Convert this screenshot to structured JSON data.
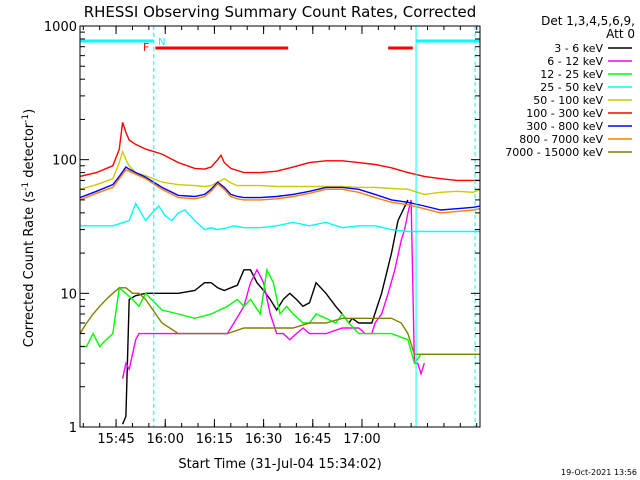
{
  "title": "RHESSI Observing Summary Count Rates, Corrected",
  "xlabel": "Start Time (31-Jul-04 15:34:02)",
  "ylabel_main": "Corrected Count Rate (s",
  "ylabel_sup": "-1",
  "ylabel_mid": " detector",
  "ylabel_end": ")",
  "footer_date": "19-Oct-2021 13:56",
  "flag_f": "F",
  "flag_n": "N",
  "legend": {
    "header_line1": "Det 1,3,4,5,6,9,",
    "header_line2": "Att 0"
  },
  "chart_data": {
    "type": "line",
    "title": "RHESSI Observing Summary Count Rates, Corrected",
    "xlabel": "Start Time (31-Jul-04 15:34:02)",
    "ylabel": "Corrected Count Rate (s^-1 detector^-1)",
    "yscale": "log",
    "ylim": [
      1,
      1000
    ],
    "xlim_minutes": [
      0,
      122
    ],
    "x_ticks": [
      {
        "label": "15:45",
        "min": 11
      },
      {
        "label": "16:00",
        "min": 26
      },
      {
        "label": "16:15",
        "min": 41
      },
      {
        "label": "16:30",
        "min": 56
      },
      {
        "label": "16:45",
        "min": 71
      },
      {
        "label": "17:00",
        "min": 86
      }
    ],
    "y_ticks": [
      {
        "label": "1",
        "value": 1
      },
      {
        "label": "10",
        "value": 10
      },
      {
        "label": "100",
        "value": 100
      },
      {
        "label": "1000",
        "value": 1000
      }
    ],
    "series": [
      {
        "name": "3 - 6 keV",
        "color": "#000000",
        "x": [
          6,
          8,
          10,
          12,
          13,
          14,
          15,
          17,
          20,
          25,
          30,
          35,
          38,
          40,
          42,
          44,
          46,
          48,
          50,
          52,
          54,
          56,
          58,
          60,
          62,
          64,
          66,
          68,
          70,
          72,
          75,
          78,
          80,
          82,
          83,
          85,
          87,
          89,
          92,
          95,
          97,
          100,
          105,
          110,
          115,
          118,
          120,
          122
        ],
        "y": [
          null,
          null,
          null,
          null,
          1.05,
          1.2,
          9.0,
          9.6,
          10,
          10,
          10,
          10.5,
          12,
          12,
          11,
          10.5,
          11,
          11.5,
          15,
          15,
          12,
          10.5,
          9,
          7.5,
          9,
          10,
          9,
          8,
          8.5,
          12,
          10,
          8,
          7,
          6,
          6.5,
          6,
          6,
          6,
          10,
          20,
          35,
          50,
          null,
          null,
          null,
          null,
          null,
          null
        ]
      },
      {
        "name": "6 - 12 keV",
        "color": "#ff00ff",
        "x": [
          13,
          14,
          15,
          16,
          17,
          18,
          20,
          25,
          30,
          35,
          40,
          45,
          50,
          52,
          54,
          56,
          58,
          60,
          62,
          64,
          66,
          68,
          70,
          75,
          80,
          85,
          87,
          89,
          90,
          92,
          94,
          96,
          98,
          99,
          100,
          101,
          102,
          103,
          104,
          105
        ],
        "y": [
          2.3,
          3.0,
          2.7,
          3.5,
          4.5,
          5,
          5,
          5,
          5,
          5,
          5,
          5,
          8,
          12,
          15,
          12,
          7,
          5,
          5,
          4.5,
          5,
          5.5,
          5,
          5,
          5.5,
          5.5,
          5,
          5,
          6,
          7,
          10,
          15,
          25,
          30,
          40,
          50,
          3,
          3,
          2.5,
          3
        ]
      },
      {
        "name": "12 - 25 keV",
        "color": "#00ff00",
        "x": [
          0,
          2,
          4,
          6,
          8,
          10,
          12,
          14,
          16,
          18,
          20,
          25,
          30,
          35,
          40,
          45,
          48,
          50,
          52,
          55,
          57,
          59,
          61,
          63,
          65,
          68,
          70,
          72,
          75,
          78,
          80,
          82,
          85,
          90,
          95,
          100,
          102,
          104,
          106,
          110,
          115,
          120,
          122
        ],
        "y": [
          4,
          4,
          5,
          4,
          4.5,
          5,
          11,
          10,
          9,
          8,
          10,
          7.5,
          7,
          6.5,
          7,
          8,
          9,
          8,
          9,
          7,
          15,
          12,
          7,
          8,
          7,
          6,
          6,
          7,
          6.5,
          6,
          7,
          6,
          5,
          5,
          5,
          4.5,
          3,
          3.5,
          3.5,
          3.5,
          3.5,
          3.5,
          3.5
        ]
      },
      {
        "name": "25 - 50 keV",
        "color": "#00ffff",
        "x": [
          0,
          5,
          10,
          15,
          17,
          20,
          22,
          24,
          26,
          28,
          30,
          32,
          35,
          38,
          40,
          42,
          45,
          47,
          50,
          55,
          60,
          65,
          70,
          75,
          80,
          85,
          90,
          95,
          100,
          105,
          110,
          115,
          120,
          122
        ],
        "y": [
          32,
          32,
          32,
          35,
          47,
          35,
          40,
          45,
          38,
          35,
          40,
          42,
          35,
          30,
          31,
          30,
          31,
          32,
          31,
          31,
          32,
          34,
          32,
          34,
          31,
          32,
          32,
          30,
          29,
          29,
          29,
          29,
          29,
          29
        ]
      },
      {
        "name": "50 - 100 keV",
        "color": "#cccc00",
        "x": [
          0,
          5,
          10,
          12,
          13,
          14,
          15,
          17,
          20,
          25,
          30,
          35,
          38,
          40,
          42,
          44,
          46,
          48,
          50,
          55,
          60,
          65,
          70,
          75,
          80,
          85,
          90,
          95,
          100,
          105,
          110,
          115,
          120,
          122
        ],
        "y": [
          60,
          65,
          72,
          95,
          115,
          100,
          90,
          80,
          76,
          68,
          65,
          64,
          63,
          64,
          68,
          72,
          67,
          64,
          64,
          64,
          63,
          63,
          63,
          63,
          63,
          62,
          62,
          61,
          60,
          55,
          57,
          58,
          57,
          60
        ]
      },
      {
        "name": "100 - 300 keV",
        "color": "#ff0000",
        "x": [
          0,
          5,
          10,
          12,
          13,
          14,
          15,
          17,
          20,
          25,
          30,
          35,
          38,
          40,
          42,
          43,
          44,
          46,
          48,
          50,
          55,
          60,
          65,
          70,
          75,
          80,
          85,
          90,
          95,
          100,
          105,
          110,
          115,
          120,
          122
        ],
        "y": [
          75,
          80,
          90,
          120,
          190,
          160,
          140,
          130,
          120,
          110,
          95,
          86,
          85,
          88,
          100,
          108,
          95,
          86,
          83,
          80,
          80,
          82,
          88,
          95,
          98,
          98,
          95,
          92,
          87,
          80,
          75,
          72,
          70,
          70,
          70
        ]
      },
      {
        "name": "300 - 800 keV",
        "color": "#0000ff",
        "x": [
          0,
          5,
          10,
          12,
          14,
          15,
          17,
          20,
          25,
          30,
          35,
          38,
          40,
          42,
          44,
          46,
          48,
          50,
          55,
          60,
          65,
          70,
          75,
          80,
          85,
          90,
          95,
          100,
          105,
          110,
          115,
          120,
          122
        ],
        "y": [
          52,
          58,
          65,
          75,
          88,
          85,
          80,
          74,
          62,
          54,
          53,
          55,
          60,
          68,
          62,
          55,
          53,
          52,
          52,
          53,
          55,
          58,
          62,
          62,
          60,
          55,
          50,
          48,
          45,
          42,
          43,
          44,
          45
        ]
      },
      {
        "name": "800 - 7000 keV",
        "color": "#ff8000",
        "x": [
          0,
          5,
          10,
          12,
          14,
          15,
          17,
          20,
          25,
          30,
          35,
          38,
          40,
          42,
          44,
          46,
          48,
          50,
          55,
          60,
          65,
          70,
          75,
          80,
          85,
          90,
          95,
          100,
          105,
          110,
          115,
          120,
          122
        ],
        "y": [
          50,
          56,
          62,
          72,
          84,
          82,
          78,
          72,
          60,
          52,
          51,
          53,
          58,
          66,
          60,
          53,
          51,
          50,
          50,
          51,
          53,
          56,
          60,
          60,
          57,
          52,
          48,
          46,
          43,
          40,
          41,
          42,
          43
        ]
      },
      {
        "name": "7000 - 15000 keV",
        "color": "#808000",
        "x": [
          0,
          2,
          4,
          6,
          8,
          10,
          12,
          14,
          16,
          18,
          20,
          25,
          30,
          35,
          40,
          45,
          50,
          55,
          60,
          65,
          70,
          75,
          80,
          85,
          90,
          95,
          98,
          100,
          102,
          104,
          106,
          110,
          115,
          120,
          122
        ],
        "y": [
          5,
          6,
          7,
          8,
          9,
          10,
          11,
          11,
          10,
          10,
          9,
          6,
          5,
          5,
          5,
          5,
          5.5,
          5.5,
          5.5,
          5.5,
          6,
          6,
          6.5,
          6.5,
          6.5,
          6.5,
          6,
          5,
          3.5,
          3.5,
          3.5,
          3.5,
          3.5,
          3.5,
          3.5
        ]
      }
    ],
    "annotation_bars": [
      {
        "label": "attenuator/segment flag (cyan)",
        "color": "#00ffff",
        "ranges_min": [
          [
            0,
            22.5
          ],
          [
            102.5,
            122
          ]
        ]
      },
      {
        "label": "flare flag (red)",
        "color": "#ff0000",
        "ranges_min": [
          [
            23,
            63.5
          ],
          [
            94,
            101.5
          ]
        ]
      }
    ],
    "vertical_lines": [
      {
        "min": 0,
        "color": "#00ffff",
        "style": "solid"
      },
      {
        "min": 22.5,
        "color": "#00ffff",
        "style": "dashed"
      },
      {
        "min": 102.5,
        "color": "#00ffff",
        "style": "solid"
      },
      {
        "min": 120.5,
        "color": "#00ffff",
        "style": "dashed"
      }
    ]
  }
}
